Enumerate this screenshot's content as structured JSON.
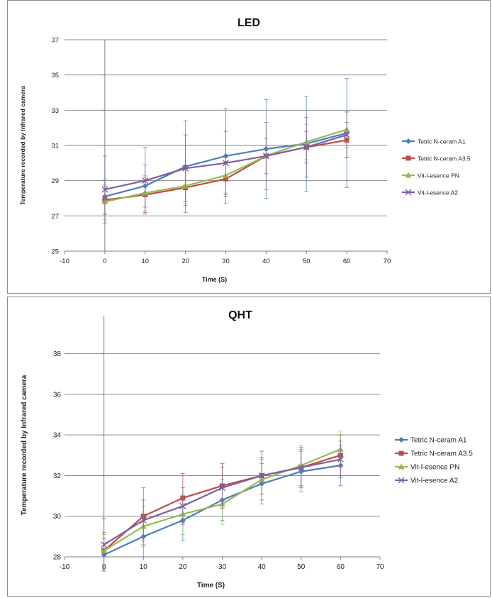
{
  "chart_data": [
    {
      "type": "line",
      "title": "LED",
      "xlabel": "Time (S)",
      "ylabel": "Temperature recorded by Infrared camera",
      "xlim": [
        -10,
        70
      ],
      "ylim": [
        25,
        37
      ],
      "xticks": [
        -10,
        0,
        10,
        20,
        30,
        40,
        50,
        60,
        70
      ],
      "yticks": [
        25,
        27,
        29,
        31,
        33,
        35,
        37
      ],
      "grid": "horizontal",
      "legend": "right",
      "x": [
        0,
        10,
        20,
        30,
        40,
        50,
        60
      ],
      "series": [
        {
          "name": "Tetric N-ceram A1",
          "color": "#4a7ebb",
          "marker": "diamond",
          "values": [
            28.1,
            28.7,
            29.8,
            30.4,
            30.8,
            31.1,
            31.7
          ],
          "err": [
            1.0,
            1.2,
            2.6,
            2.7,
            2.8,
            2.7,
            3.1
          ]
        },
        {
          "name": "Tetric N-ceram A3.5",
          "color": "#be4b48",
          "marker": "square",
          "values": [
            27.9,
            28.2,
            28.6,
            29.1,
            30.4,
            30.9,
            31.3
          ],
          "err": [
            0.8,
            1.0,
            1.0,
            1.0,
            1.0,
            0.9,
            1.0
          ]
        },
        {
          "name": "Vit-l-esence PN",
          "color": "#98b954",
          "marker": "triangle",
          "values": [
            27.8,
            28.3,
            28.7,
            29.3,
            30.4,
            31.2,
            31.9
          ],
          "err": [
            1.0,
            1.0,
            1.0,
            1.0,
            1.0,
            1.0,
            1.0
          ]
        },
        {
          "name": "Vit-l-esence A2",
          "color": "#7d60a0",
          "marker": "x",
          "values": [
            28.5,
            29.0,
            29.7,
            30.0,
            30.4,
            30.9,
            31.6
          ],
          "err": [
            1.9,
            1.9,
            1.9,
            1.8,
            1.9,
            1.7,
            1.3
          ]
        }
      ]
    },
    {
      "type": "line",
      "title": "QHT",
      "xlabel": "Time (S)",
      "ylabel": "Temperature  recorded by Infrared camera",
      "xlim": [
        -10,
        70
      ],
      "ylim": [
        28,
        39
      ],
      "xticks": [
        -10,
        0,
        10,
        20,
        30,
        40,
        50,
        60,
        70
      ],
      "yticks": [
        28,
        30,
        32,
        34,
        36,
        38
      ],
      "grid": "horizontal",
      "legend": "right",
      "x": [
        0,
        10,
        20,
        30,
        40,
        50,
        60
      ],
      "series": [
        {
          "name": "Tetric N-ceram A1",
          "color": "#4a7ebb",
          "marker": "diamond",
          "values": [
            28.1,
            29.0,
            29.8,
            30.8,
            31.6,
            32.2,
            32.5
          ],
          "err": [
            0.8,
            1.0,
            1.0,
            1.0,
            1.0,
            1.0,
            1.0
          ]
        },
        {
          "name": "Tetric N-ceram A3.5",
          "color": "#be4b48",
          "marker": "square",
          "values": [
            28.3,
            30.0,
            30.9,
            31.5,
            32.0,
            32.4,
            33.0
          ],
          "err": [
            0.9,
            1.4,
            1.2,
            1.1,
            1.2,
            1.0,
            1.0
          ]
        },
        {
          "name": "Vit-l-esence PN",
          "color": "#98b954",
          "marker": "triangle",
          "values": [
            28.3,
            29.5,
            30.1,
            30.6,
            31.8,
            32.5,
            33.3
          ],
          "err": [
            0.8,
            1.0,
            1.0,
            1.0,
            1.0,
            1.0,
            0.9
          ]
        },
        {
          "name": "Vit-l-esence A2",
          "color": "#7d60a0",
          "marker": "x",
          "values": [
            28.6,
            29.8,
            30.5,
            31.4,
            32.0,
            32.4,
            32.8
          ],
          "err": [
            1.3,
            1.0,
            0.9,
            1.0,
            0.9,
            0.9,
            0.9
          ]
        }
      ]
    }
  ]
}
